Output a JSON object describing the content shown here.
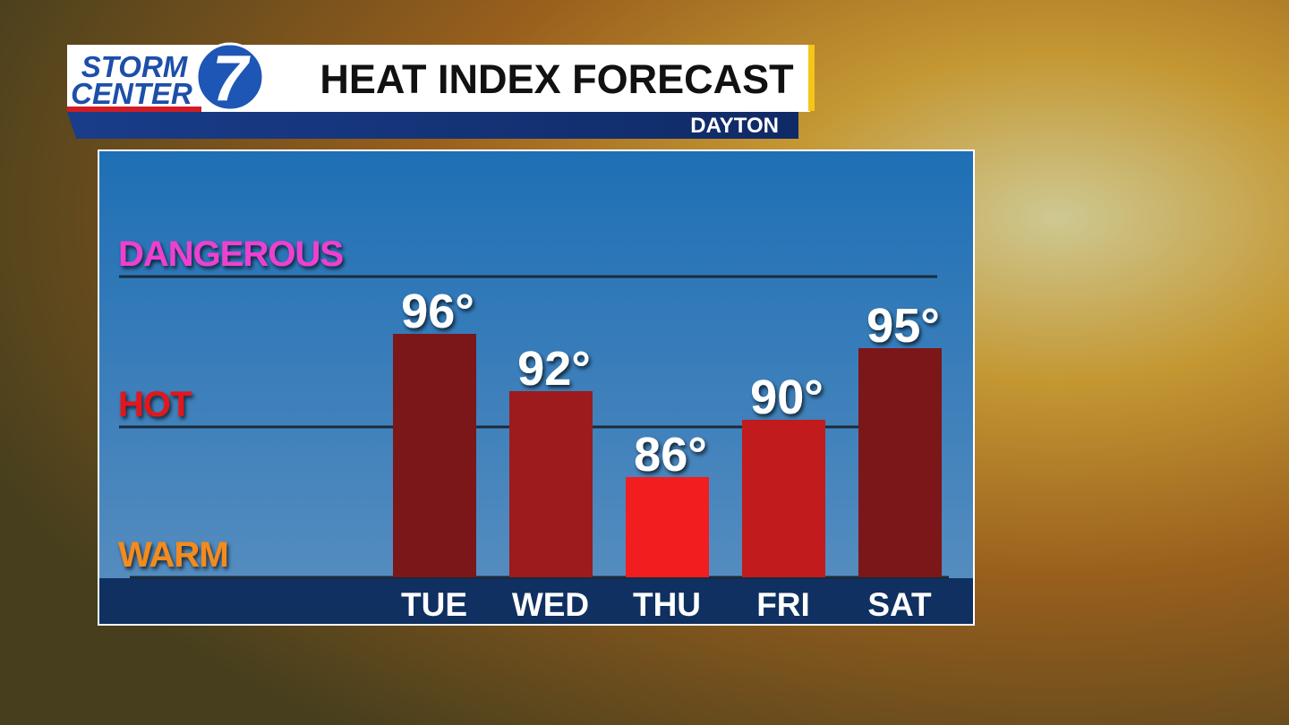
{
  "logo": {
    "top": "STORM",
    "bottom": "CENTER",
    "number": "7"
  },
  "chart_data": {
    "type": "bar",
    "title": "HEAT INDEX FORECAST",
    "subtitle": "DAYTON",
    "categories": [
      "TUE",
      "WED",
      "THU",
      "FRI",
      "SAT"
    ],
    "values": [
      96,
      92,
      86,
      90,
      95
    ],
    "value_labels": [
      "96°",
      "92°",
      "86°",
      "90°",
      "95°"
    ],
    "colors": [
      "#7b1619",
      "#9d1a1d",
      "#f21d1f",
      "#c11b1e",
      "#7b1619"
    ],
    "ylim": [
      79,
      108
    ],
    "levels": [
      {
        "label": "DANGEROUS",
        "value": 100,
        "color": "#ee3fcf"
      },
      {
        "label": "HOT",
        "value": 89.5,
        "color": "#e3131c"
      },
      {
        "label": "WARM",
        "value": 79,
        "color": "#f48b1d"
      }
    ]
  }
}
